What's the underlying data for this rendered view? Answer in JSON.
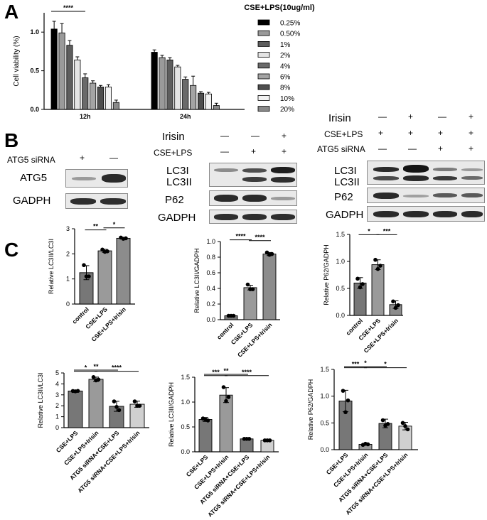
{
  "panels": {
    "a": "A",
    "b": "B",
    "c": "C"
  },
  "panel_a": {
    "title": "CSE+LPS(10ug/ml)",
    "sig": "****"
  },
  "panel_b": {
    "left": {
      "atg5_sirna": "ATG5 siRNA",
      "atg5_sirna_signs": [
        "+",
        "—"
      ],
      "row_atg5": "ATG5",
      "row_gadph": "GADPH"
    },
    "middle": {
      "irisin": "Irisin",
      "cse_lps": "CSE+LPS",
      "irisin_signs": [
        "—",
        "—",
        "+"
      ],
      "cse_lps_signs": [
        "—",
        "+",
        "+"
      ],
      "row_lc3": "LC3I\nLC3II",
      "row_lc3i": "LC3I",
      "row_lc3ii": "LC3II",
      "row_p62": "P62",
      "row_gadph": "GADPH"
    },
    "right": {
      "irisin": "Irisin",
      "cse_lps": "CSE+LPS",
      "atg5_sirna": "ATG5 siRNA",
      "irisin_signs": [
        "—",
        "+",
        "—",
        "+"
      ],
      "cse_lps_signs": [
        "+",
        "+",
        "+",
        "+"
      ],
      "atg5_signs": [
        "—",
        "—",
        "+",
        "+"
      ],
      "row_lc3i": "LC3I",
      "row_lc3ii": "LC3II",
      "row_p62": "P62",
      "row_gadph": "GADPH"
    }
  },
  "chart_data": [
    {
      "type": "bar",
      "title": "CSE+LPS(10ug/ml)",
      "ylabel": "Cell viability (%)",
      "xlabel": "",
      "categories": [
        "12h",
        "24h"
      ],
      "ylim": [
        0,
        1.25
      ],
      "yticks": [
        0.0,
        0.5,
        1.0
      ],
      "tick_labels": [
        "0.0",
        "0.5",
        "1.0"
      ],
      "series": [
        {
          "name": "0.25%",
          "color": "#000000",
          "values": [
            1.04,
            0.74
          ],
          "err": [
            0.1,
            0.03
          ]
        },
        {
          "name": "0.50%",
          "color": "#9a9a9a",
          "values": [
            0.99,
            0.67
          ],
          "err": [
            0.12,
            0.03
          ]
        },
        {
          "name": "1%",
          "color": "#5e5e5e",
          "values": [
            0.83,
            0.64
          ],
          "err": [
            0.06,
            0.03
          ]
        },
        {
          "name": "2%",
          "color": "#e4e4e4",
          "values": [
            0.64,
            0.55
          ],
          "err": [
            0.04,
            0.02
          ]
        },
        {
          "name": "4%",
          "color": "#6a6a6a",
          "values": [
            0.41,
            0.39
          ],
          "err": [
            0.05,
            0.03
          ]
        },
        {
          "name": "6%",
          "color": "#a4a4a4",
          "values": [
            0.34,
            0.31
          ],
          "err": [
            0.03,
            0.12
          ]
        },
        {
          "name": "8%",
          "color": "#4e4e4e",
          "values": [
            0.29,
            0.21
          ],
          "err": [
            0.02,
            0.02
          ]
        },
        {
          "name": "10%",
          "color": "#f2f2f2",
          "values": [
            0.29,
            0.2
          ],
          "err": [
            0.03,
            0.02
          ]
        },
        {
          "name": "20%",
          "color": "#8a8a8a",
          "values": [
            0.09,
            0.05
          ],
          "err": [
            0.03,
            0.03
          ]
        }
      ],
      "significance": [
        {
          "label": "****"
        }
      ]
    },
    {
      "type": "bar",
      "ylabel": "Relative LC3II/LC3I",
      "categories": [
        "control",
        "CSE+LPS",
        "CSE+LPS+Irisin"
      ],
      "values": [
        1.25,
        2.12,
        2.62
      ],
      "err": [
        0.28,
        0.06,
        0.03
      ],
      "points": [
        [
          1.55,
          1.1,
          1.1
        ],
        [
          2.17,
          2.1,
          2.08
        ],
        [
          2.65,
          2.62,
          2.6
        ]
      ],
      "colors": [
        "#777777",
        "#9a9a9a",
        "#8c8c8c"
      ],
      "ylim": [
        0,
        3
      ],
      "tick_labels": [
        "0",
        "1",
        "2",
        "3"
      ],
      "significance": [
        {
          "label": "**"
        },
        {
          "label": "*"
        }
      ]
    },
    {
      "type": "bar",
      "ylabel": "Relative LC3II/GADPH",
      "categories": [
        "control",
        "CSE+LPS",
        "CSE+LPS+Irisin"
      ],
      "values": [
        0.05,
        0.41,
        0.84
      ],
      "err": [
        0.01,
        0.03,
        0.02
      ],
      "points": [
        [
          0.05,
          0.05,
          0.05
        ],
        [
          0.45,
          0.39,
          0.39
        ],
        [
          0.86,
          0.84,
          0.83
        ]
      ],
      "colors": [
        "#777777",
        "#9a9a9a",
        "#8c8c8c"
      ],
      "ylim": [
        0,
        1.0
      ],
      "tick_labels": [
        "0.0",
        "0.2",
        "0.4",
        "0.6",
        "0.8",
        "1.0"
      ],
      "significance": [
        {
          "label": "****"
        },
        {
          "label": "****"
        }
      ]
    },
    {
      "type": "bar",
      "ylabel": "Relative P62/GADPH",
      "categories": [
        "control",
        "CSE+LPS",
        "CSE+LPS+Irisin"
      ],
      "values": [
        0.6,
        0.94,
        0.2
      ],
      "err": [
        0.1,
        0.09,
        0.07
      ],
      "points": [
        [
          0.68,
          0.58,
          0.52
        ],
        [
          1.03,
          0.92,
          0.86
        ],
        [
          0.26,
          0.19,
          0.14
        ]
      ],
      "colors": [
        "#777777",
        "#9a9a9a",
        "#8c8c8c"
      ],
      "ylim": [
        0,
        1.5
      ],
      "tick_labels": [
        "0.0",
        "0.5",
        "1.0",
        "1.5"
      ],
      "significance": [
        {
          "label": "*"
        },
        {
          "label": "***"
        }
      ]
    },
    {
      "type": "bar",
      "ylabel": "Relative LC3II/LC3I",
      "categories": [
        "CSE+LPS",
        "CSE+LPS+Irisin",
        "ATG5 siRNA+CSE+LPS",
        "ATG5 siRNA+CSE+LPS+Irisin"
      ],
      "values": [
        3.35,
        4.42,
        1.95,
        2.14
      ],
      "err": [
        0.04,
        0.2,
        0.46,
        0.28
      ],
      "points": [
        [
          3.35,
          3.36,
          3.32
        ],
        [
          4.62,
          4.4,
          4.32
        ],
        [
          2.4,
          1.6,
          1.9
        ],
        [
          2.4,
          2.0,
          2.0
        ]
      ],
      "colors": [
        "#777777",
        "#9a9a9a",
        "#777777",
        "#d0d0d0"
      ],
      "ylim": [
        0,
        5
      ],
      "tick_labels": [
        "0",
        "1",
        "2",
        "3",
        "4",
        "5"
      ],
      "significance": [
        {
          "label": "**"
        },
        {
          "label": "*"
        },
        {
          "label": "****"
        }
      ]
    },
    {
      "type": "bar",
      "ylabel": "Relative LC3II/GADPH",
      "categories": [
        "CSE+LPS",
        "CSE+LPS+Irisin",
        "ATG5 siRNA+CSE+LPS",
        "ATG5 siRNA+CSE+LPS+Irisin"
      ],
      "values": [
        0.65,
        1.14,
        0.26,
        0.23
      ],
      "err": [
        0.04,
        0.15,
        0.01,
        0.01
      ],
      "points": [
        [
          0.67,
          0.63,
          0.65
        ],
        [
          1.3,
          1.1,
          1.02
        ],
        [
          0.26,
          0.26,
          0.26
        ],
        [
          0.23,
          0.23,
          0.23
        ]
      ],
      "colors": [
        "#777777",
        "#9a9a9a",
        "#777777",
        "#d0d0d0"
      ],
      "ylim": [
        0,
        1.5
      ],
      "tick_labels": [
        "0.0",
        "0.5",
        "1.0",
        "1.5"
      ],
      "significance": [
        {
          "label": "**"
        },
        {
          "label": "***"
        },
        {
          "label": "****"
        }
      ]
    },
    {
      "type": "bar",
      "ylabel": "Relative P62/GADPH",
      "categories": [
        "CSE+LPS",
        "CSE+LPS+Irisin",
        "ATG5 siRNA+CSE+LPS",
        "ATG5 siRNA+CSE+LPS+Irisin"
      ],
      "values": [
        0.91,
        0.1,
        0.49,
        0.44
      ],
      "err": [
        0.2,
        0.01,
        0.08,
        0.07
      ],
      "points": [
        [
          1.1,
          0.92,
          0.7
        ],
        [
          0.09,
          0.1,
          0.11
        ],
        [
          0.55,
          0.48,
          0.45
        ],
        [
          0.5,
          0.38,
          0.44
        ]
      ],
      "colors": [
        "#777777",
        "#9a9a9a",
        "#777777",
        "#d0d0d0"
      ],
      "ylim": [
        0,
        1.5
      ],
      "tick_labels": [
        "0.0",
        "0.5",
        "1.0",
        "1.5"
      ],
      "significance": [
        {
          "label": "*"
        },
        {
          "label": "***"
        },
        {
          "label": "*"
        }
      ]
    }
  ]
}
